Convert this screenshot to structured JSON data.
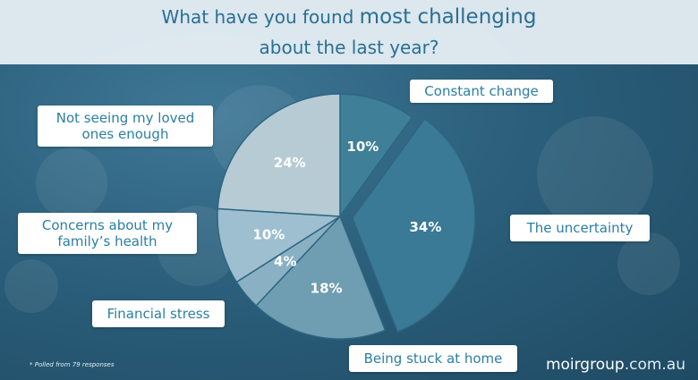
{
  "title": {
    "prefix": "What have you found ",
    "emphasis": "most challenging",
    "line2": "about the last year?"
  },
  "chart_data": {
    "type": "pie",
    "slices": [
      {
        "label": "Constant change",
        "value": 10,
        "display": "10%",
        "color": "#3f7f98"
      },
      {
        "label": "The uncertainty",
        "value": 34,
        "display": "34%",
        "color": "#3a7a97",
        "exploded": true
      },
      {
        "label": "Being stuck at home",
        "value": 18,
        "display": "18%",
        "color": "#6f9db2"
      },
      {
        "label": "Financial stress",
        "value": 4,
        "display": "4%",
        "color": "#89b1c3"
      },
      {
        "label": "Concerns about my family's health",
        "value": 10,
        "display": "10%",
        "color": "#9dbfcf"
      },
      {
        "label": "Not seeing my loved ones enough",
        "value": 24,
        "display": "24%",
        "color": "#b7cbd4"
      }
    ]
  },
  "labels": {
    "constant_change": "Constant change",
    "uncertainty": "The uncertainty",
    "stuck_home": "Being stuck at home",
    "financial": "Financial stress",
    "family_line1": "Concerns about my",
    "family_line2": "family’s health",
    "loved_line1": "Not seeing my loved",
    "loved_line2": "ones enough"
  },
  "footnote": "* Polled from 79 responses",
  "brand": {
    "name": "moirgroup",
    "tld": ".com.au"
  }
}
